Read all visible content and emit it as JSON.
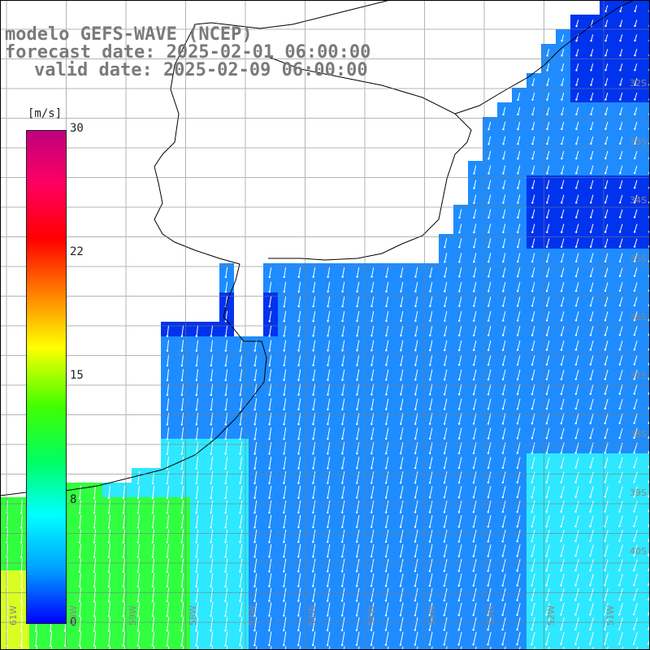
{
  "header": {
    "line1": "modelo GEFS-WAVE (NCEP)",
    "line2": "forecast date: 2025-02-01 06:00:00",
    "line3": "valid date: 2025-02-09 06:00:00"
  },
  "colorbar": {
    "unit": "[m/s]",
    "ticks": [
      "30",
      "22",
      "15",
      "8",
      "0"
    ],
    "colors": [
      "#0000ff",
      "#00a0ff",
      "#00ffff",
      "#00ff60",
      "#40ff00",
      "#ffff00",
      "#ff8000",
      "#ff0000",
      "#ff0060",
      "#c00080"
    ]
  },
  "map": {
    "land_color": "#ffffff",
    "ocean_colors": {
      "low": "#0033ee",
      "mid": "#1e8cff",
      "high": "#2ee8ff",
      "green": "#30ff40",
      "yellow": "#d8ff20"
    },
    "lat_labels": [
      "32S",
      "33S",
      "34S",
      "35S",
      "36S",
      "37S",
      "38S",
      "39S",
      "40S"
    ],
    "lon_labels": [
      "61W",
      "60W",
      "59W",
      "58W",
      "57W",
      "56W",
      "55W",
      "54W",
      "53W",
      "52W",
      "51W"
    ]
  }
}
